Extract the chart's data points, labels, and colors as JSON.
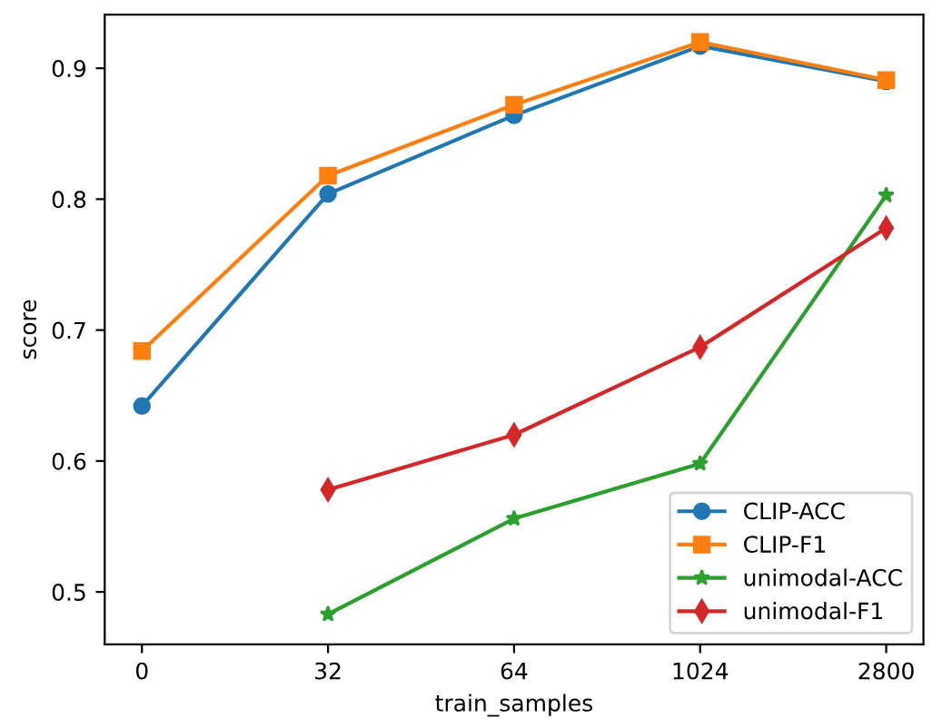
{
  "chart_data": {
    "type": "line",
    "xlabel": "train_samples",
    "ylabel": "score",
    "categories": [
      "0",
      "32",
      "64",
      "1024",
      "2800"
    ],
    "series": [
      {
        "name": "CLIP-ACC",
        "color": "#1f77b4",
        "marker": "circle",
        "values": [
          0.642,
          0.804,
          0.864,
          0.917,
          0.89
        ]
      },
      {
        "name": "CLIP-F1",
        "color": "#ff7f0e",
        "marker": "square",
        "values": [
          0.684,
          0.818,
          0.872,
          0.92,
          0.891
        ]
      },
      {
        "name": "unimodal-ACC",
        "color": "#2ca02c",
        "marker": "star",
        "values": [
          null,
          0.483,
          0.556,
          0.598,
          0.803
        ]
      },
      {
        "name": "unimodal-F1",
        "color": "#d62728",
        "marker": "diamond",
        "values": [
          null,
          0.578,
          0.62,
          0.687,
          0.778
        ]
      }
    ],
    "ylim": [
      0.46,
      0.941
    ],
    "yticks": [
      0.5,
      0.6,
      0.7,
      0.8,
      0.9
    ],
    "legend": "lower right",
    "grid": false,
    "line_style": "solid"
  }
}
